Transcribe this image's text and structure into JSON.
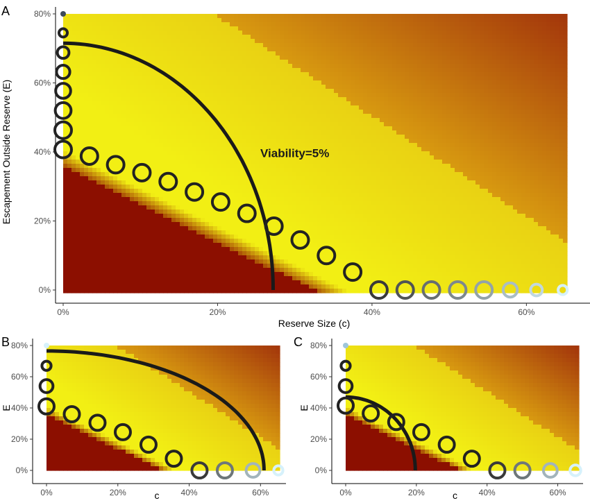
{
  "colors": {
    "low": "#8c0f00",
    "mid": "#f2ef14",
    "upper": "#d89a10",
    "high": "#a3360b",
    "curve": "#1a1a1a",
    "circle_dark": "#222222",
    "circle_light": "#d6f1fb"
  },
  "chart_data": [
    {
      "panel": "A",
      "type": "scatter",
      "xlabel": "Reserve Size (c)",
      "ylabel": "Escapement Outside Reserve (E)",
      "x_ticks": [
        "0%",
        "20%",
        "40%",
        "60%"
      ],
      "y_ticks": [
        "0%",
        "20%",
        "40%",
        "60%",
        "80%"
      ],
      "xlim": [
        0,
        0.65
      ],
      "ylim": [
        0,
        0.8
      ],
      "annotation": "Viability=5%",
      "annotation_at": [
        0.3,
        0.385
      ],
      "viability_curve": {
        "c_max": 0.272,
        "e_max": 0.715
      },
      "points": [
        {
          "c": 0.0,
          "E": 0.8,
          "size": 0.2
        },
        {
          "c": 0.0,
          "E": 0.745,
          "size": 0.5
        },
        {
          "c": 0.0,
          "E": 0.688,
          "size": 0.7
        },
        {
          "c": 0.0,
          "E": 0.632,
          "size": 0.8
        },
        {
          "c": 0.0,
          "E": 0.577,
          "size": 0.9
        },
        {
          "c": 0.0,
          "E": 0.52,
          "size": 0.95
        },
        {
          "c": 0.0,
          "E": 0.463,
          "size": 1.0
        },
        {
          "c": 0.0,
          "E": 0.407,
          "size": 1.0
        },
        {
          "c": 0.034,
          "E": 0.388,
          "size": 1.0
        },
        {
          "c": 0.068,
          "E": 0.363,
          "size": 1.0
        },
        {
          "c": 0.102,
          "E": 0.34,
          "size": 1.0
        },
        {
          "c": 0.136,
          "E": 0.314,
          "size": 1.0
        },
        {
          "c": 0.17,
          "E": 0.284,
          "size": 1.0
        },
        {
          "c": 0.204,
          "E": 0.255,
          "size": 1.0
        },
        {
          "c": 0.238,
          "E": 0.222,
          "size": 1.0
        },
        {
          "c": 0.273,
          "E": 0.185,
          "size": 1.0
        },
        {
          "c": 0.307,
          "E": 0.145,
          "size": 1.0
        },
        {
          "c": 0.341,
          "E": 0.1,
          "size": 1.0
        },
        {
          "c": 0.375,
          "E": 0.052,
          "size": 1.0
        },
        {
          "c": 0.409,
          "E": 0.0,
          "size": 1.0
        },
        {
          "c": 0.443,
          "E": 0.0,
          "size": 1.0
        },
        {
          "c": 0.477,
          "E": 0.0,
          "size": 1.0
        },
        {
          "c": 0.511,
          "E": 0.0,
          "size": 1.0
        },
        {
          "c": 0.545,
          "E": 0.0,
          "size": 1.0
        },
        {
          "c": 0.579,
          "E": 0.0,
          "size": 0.85
        },
        {
          "c": 0.613,
          "E": 0.0,
          "size": 0.7
        },
        {
          "c": 0.647,
          "E": 0.0,
          "size": 0.55
        }
      ]
    },
    {
      "panel": "B",
      "type": "scatter",
      "xlabel": "c",
      "ylabel": "E",
      "x_ticks": [
        "0%",
        "20%",
        "40%",
        "60%"
      ],
      "y_ticks": [
        "0%",
        "20%",
        "40%",
        "60%",
        "80%"
      ],
      "xlim": [
        0,
        0.65
      ],
      "ylim": [
        0,
        0.8
      ],
      "viability_curve": {
        "c_max": 0.61,
        "e_max": 0.765
      },
      "points": [
        {
          "c": 0.0,
          "E": 0.8,
          "size": 0.2
        },
        {
          "c": 0.0,
          "E": 0.67,
          "size": 0.6
        },
        {
          "c": 0.0,
          "E": 0.54,
          "size": 0.85
        },
        {
          "c": 0.0,
          "E": 0.41,
          "size": 1.0
        },
        {
          "c": 0.071,
          "E": 0.36,
          "size": 1.0
        },
        {
          "c": 0.143,
          "E": 0.305,
          "size": 1.0
        },
        {
          "c": 0.214,
          "E": 0.245,
          "size": 1.0
        },
        {
          "c": 0.286,
          "E": 0.165,
          "size": 1.0
        },
        {
          "c": 0.357,
          "E": 0.075,
          "size": 1.0
        },
        {
          "c": 0.429,
          "E": 0.0,
          "size": 1.0
        },
        {
          "c": 0.5,
          "E": 0.0,
          "size": 1.0
        },
        {
          "c": 0.579,
          "E": 0.0,
          "size": 0.9
        },
        {
          "c": 0.65,
          "E": 0.0,
          "size": 0.6
        }
      ]
    },
    {
      "panel": "C",
      "type": "scatter",
      "xlabel": "c",
      "ylabel": "E",
      "x_ticks": [
        "0%",
        "20%",
        "40%",
        "60%"
      ],
      "y_ticks": [
        "0%",
        "20%",
        "40%",
        "60%",
        "80%"
      ],
      "xlim": [
        0,
        0.65
      ],
      "ylim": [
        0,
        0.8
      ],
      "viability_curve": {
        "c_max": 0.197,
        "e_max": 0.47
      },
      "points": [
        {
          "c": 0.0,
          "E": 0.8,
          "size": 0.2
        },
        {
          "c": 0.0,
          "E": 0.67,
          "size": 0.6
        },
        {
          "c": 0.0,
          "E": 0.54,
          "size": 0.85
        },
        {
          "c": 0.0,
          "E": 0.415,
          "size": 1.0
        },
        {
          "c": 0.071,
          "E": 0.365,
          "size": 1.0
        },
        {
          "c": 0.143,
          "E": 0.31,
          "size": 1.0
        },
        {
          "c": 0.214,
          "E": 0.245,
          "size": 1.0
        },
        {
          "c": 0.286,
          "E": 0.165,
          "size": 1.0
        },
        {
          "c": 0.357,
          "E": 0.075,
          "size": 1.0
        },
        {
          "c": 0.429,
          "E": 0.0,
          "size": 1.0
        },
        {
          "c": 0.5,
          "E": 0.0,
          "size": 1.0
        },
        {
          "c": 0.579,
          "E": 0.0,
          "size": 0.9
        },
        {
          "c": 0.65,
          "E": 0.0,
          "size": 0.7
        }
      ]
    }
  ]
}
